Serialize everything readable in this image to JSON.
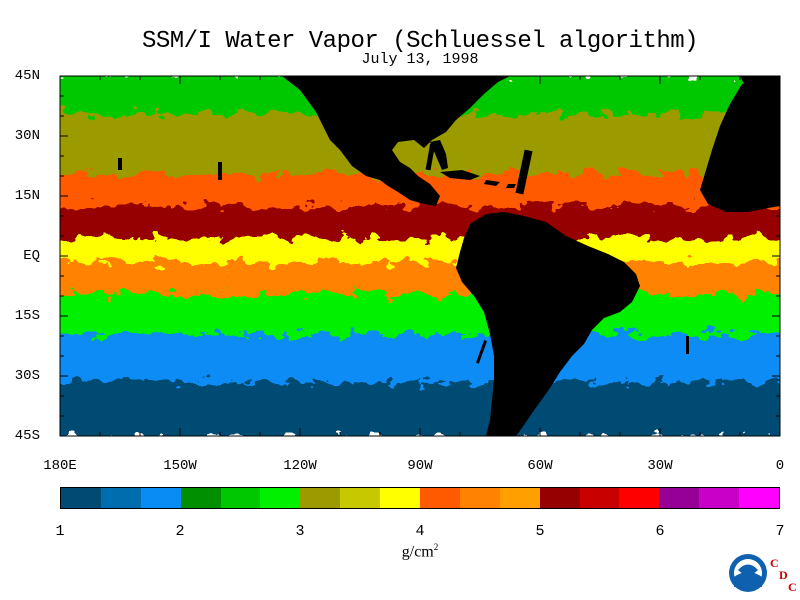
{
  "title": "SSM/I Water Vapor (Schluessel algorithm)",
  "date": "July 13, 1998",
  "lat_labels": [
    "45N",
    "30N",
    "15N",
    "EQ",
    "15S",
    "30S",
    "45S"
  ],
  "lon_labels": [
    "180E",
    "150W",
    "120W",
    "90W",
    "60W",
    "30W",
    "0"
  ],
  "colorbar": {
    "colors": [
      "#004b73",
      "#006eae",
      "#0a8cf5",
      "#008f00",
      "#00c800",
      "#00f000",
      "#9b9b00",
      "#c8c800",
      "#ffff00",
      "#ff5a00",
      "#ff8200",
      "#ffa000",
      "#960000",
      "#c80000",
      "#ff0000",
      "#960096",
      "#c800c8",
      "#ff00ff"
    ],
    "tick_labels": [
      "1",
      "2",
      "3",
      "4",
      "5",
      "6",
      "7"
    ],
    "units": "g/cm",
    "units_exp": "2",
    "range": [
      1,
      7
    ]
  },
  "logo": {
    "text": "NOAA",
    "letters": [
      "C",
      "D",
      "C"
    ]
  },
  "chart_data": {
    "type": "heatmap",
    "title": "SSM/I Water Vapor (Schluessel algorithm)",
    "subtitle": "July 13, 1998",
    "xlabel": "",
    "ylabel": "",
    "x_ticks": [
      "180E",
      "150W",
      "120W",
      "90W",
      "60W",
      "30W",
      "0"
    ],
    "y_ticks": [
      "45N",
      "30N",
      "15N",
      "EQ",
      "15S",
      "30S",
      "45S"
    ],
    "xlim": [
      -180,
      0
    ],
    "ylim": [
      -45,
      45
    ],
    "colorbar_range": [
      1,
      7
    ],
    "colorbar_units": "g/cm²",
    "land_color": "#000000",
    "zonal_bands": [
      {
        "lat_range": [
          35,
          45
        ],
        "value": 2.5
      },
      {
        "lat_range": [
          20,
          35
        ],
        "value": 3.2
      },
      {
        "lat_range": [
          12,
          20
        ],
        "value": 4.2
      },
      {
        "lat_range": [
          4,
          12
        ],
        "value": 5.3
      },
      {
        "lat_range": [
          -2,
          4
        ],
        "value": 3.8
      },
      {
        "lat_range": [
          -10,
          -2
        ],
        "value": 4.5
      },
      {
        "lat_range": [
          -20,
          -10
        ],
        "value": 2.8
      },
      {
        "lat_range": [
          -32,
          -20
        ],
        "value": 1.9
      },
      {
        "lat_range": [
          -45,
          -32
        ],
        "value": 1.3
      }
    ]
  }
}
